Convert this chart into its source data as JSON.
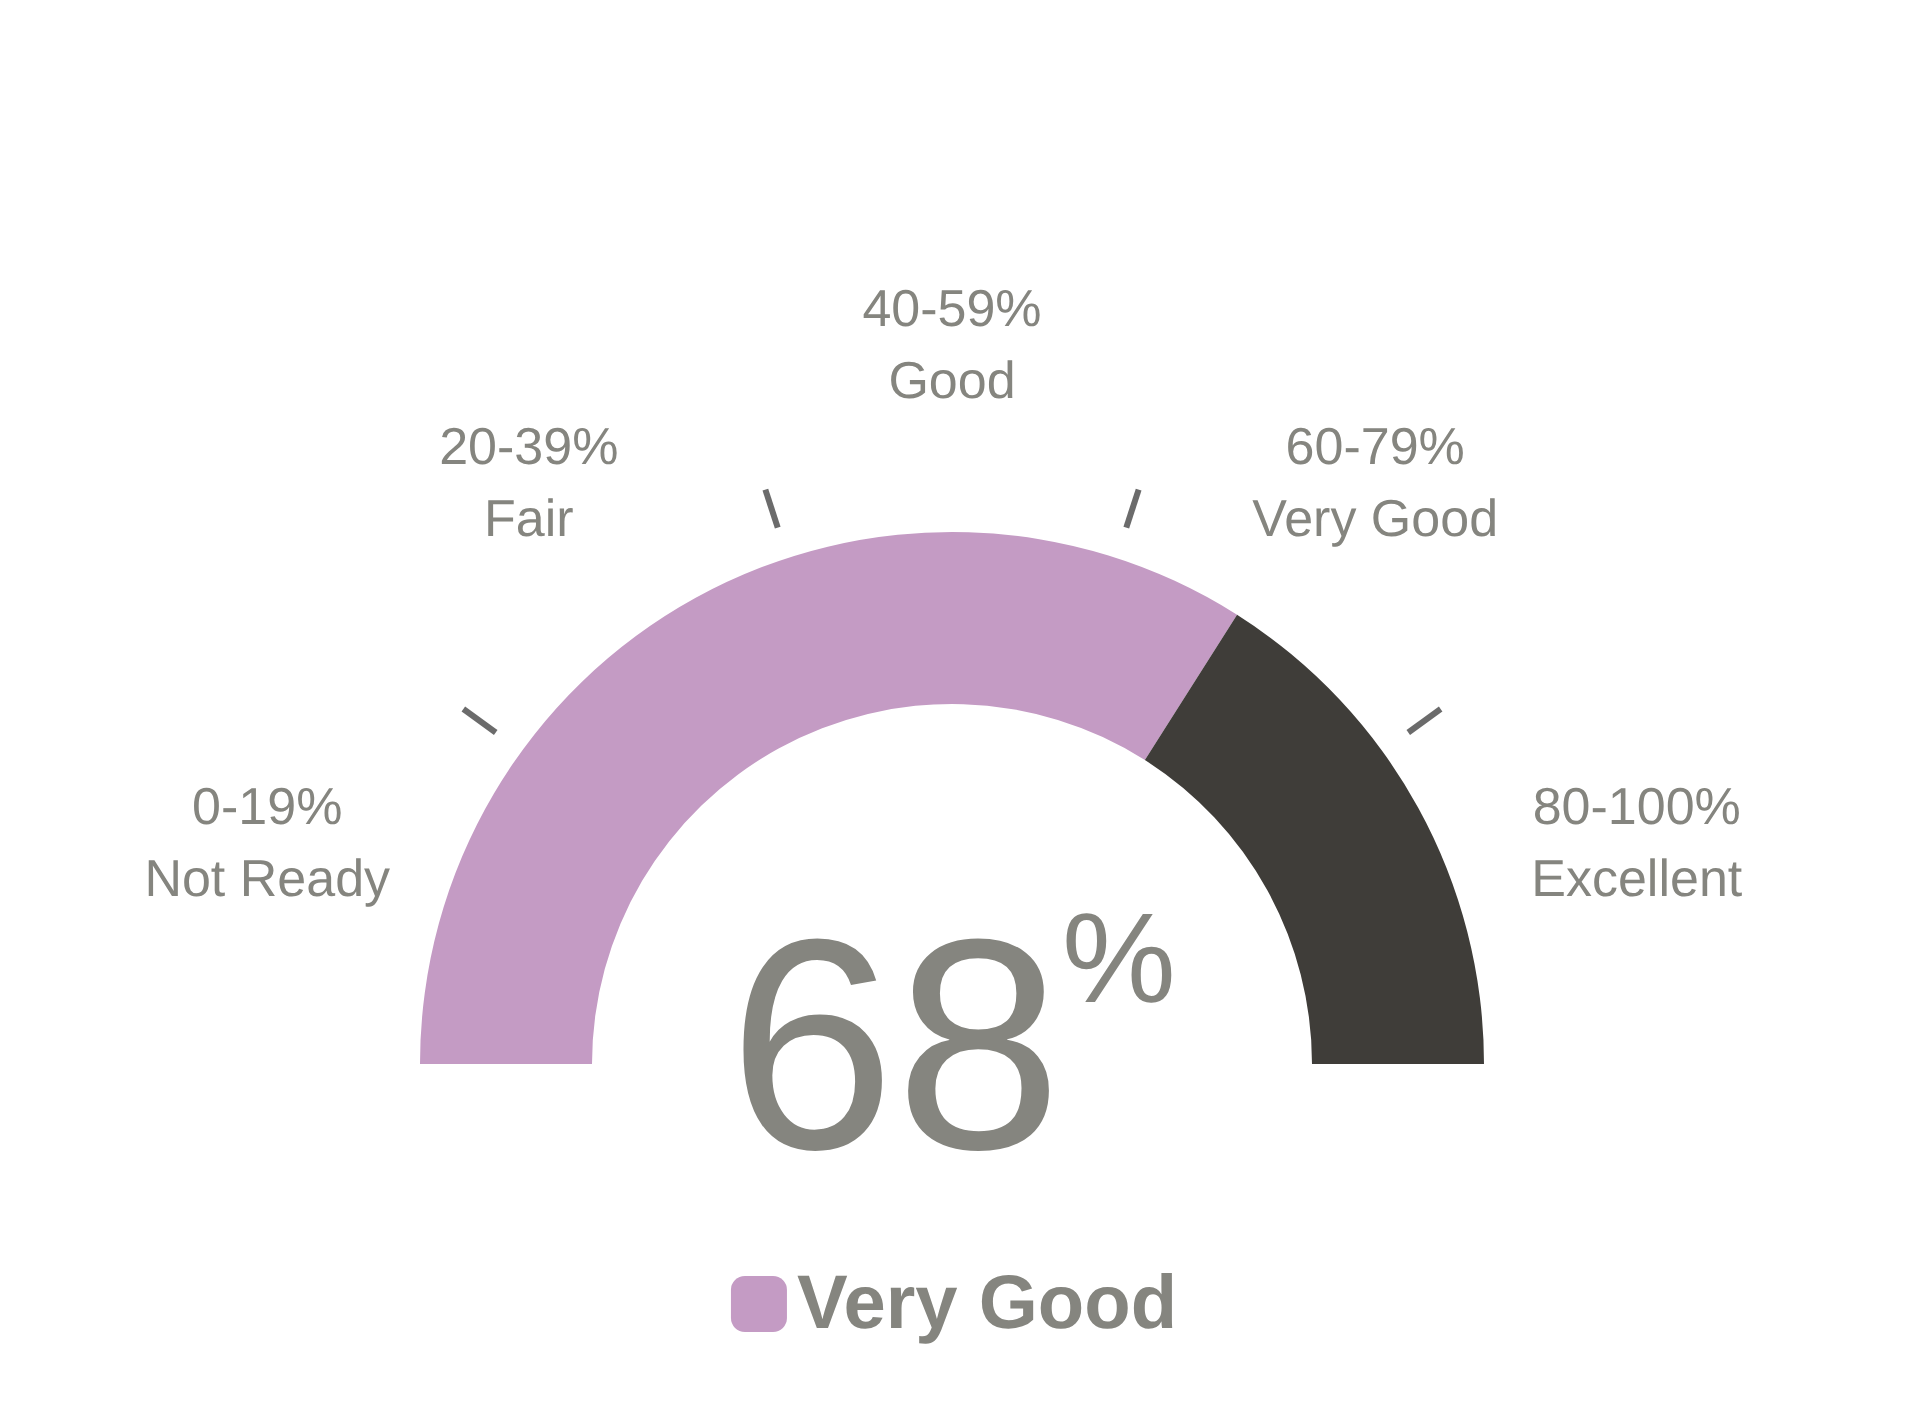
{
  "chart_data": {
    "type": "donut",
    "categories": [
      "Very Good",
      null
    ],
    "values": [
      68,
      32
    ],
    "colors": [
      "#c49bc4",
      "#3f3d39"
    ],
    "value_labels": [
      "68%",
      null
    ],
    "annotations": [
      "0-19%\nNot Ready",
      "20-39%\nFair",
      "40-59%\nGood",
      "60-79%\nVery Good",
      "80-100%\nExcellent"
    ],
    "legend": "bottom"
  }
}
